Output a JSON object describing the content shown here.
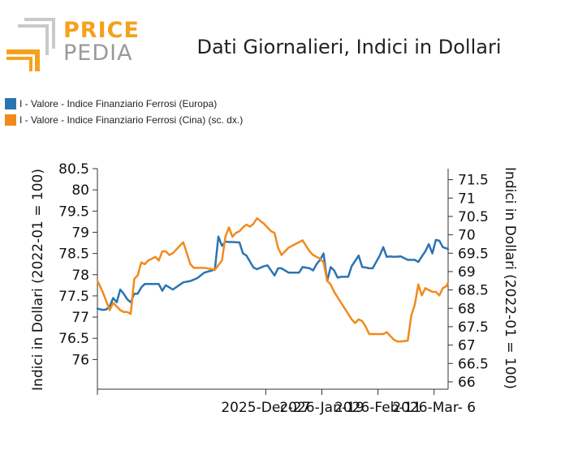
{
  "header": {
    "brand_top": "PRICE",
    "brand_bottom": "PEDIA",
    "title": "Dati Giornalieri, Indici in Dollari"
  },
  "colors": {
    "blue": "#2b74b2",
    "orange": "#f28a1c",
    "logo_orange": "#f5a11c",
    "logo_gray": "#b5b5b5"
  },
  "chart_data": {
    "type": "line",
    "title": "Dati Giornalieri, Indici in Dollari",
    "xlabel": "",
    "ylabel_left": "Indici in Dollari (2022-01 = 100)",
    "ylabel_right": "Indici in Dollari (2022-01 = 100)",
    "ylim_left": [
      75.3,
      80.5
    ],
    "ylim_right": [
      65.8,
      71.8
    ],
    "yticks_left": [
      "80.5",
      "80",
      "79.5",
      "79",
      "78.5",
      "78",
      "77.5",
      "77",
      "76.5",
      "76"
    ],
    "yticks_right": [
      "71.5",
      "71",
      "70.5",
      "70",
      "69.5",
      "69",
      "68.5",
      "68",
      "67.5",
      "67",
      "66.5",
      "66"
    ],
    "xticks": [
      "2025-Dec-27",
      "2026-Jan-19",
      "2026-Feb-11",
      "2026-Mar- 6"
    ],
    "xtick_positions": [
      48,
      64,
      80,
      96
    ],
    "xlim": [
      0,
      100
    ],
    "series": [
      {
        "name": "I - Valore - Indice Finanziario Ferrosi (Europa)",
        "axis": "left",
        "x": [
          0,
          1.5,
          2.5,
          3.5,
          4.5,
          5.5,
          6.5,
          7.5,
          8.5,
          9.5,
          10.5,
          11.5,
          12.5,
          13.5,
          15.5,
          17.5,
          18.5,
          19.5,
          21.5,
          24.5,
          26.5,
          28.5,
          30.5,
          33.5,
          34.5,
          35.5,
          36.5,
          37.5,
          38.5,
          40.5,
          41.5,
          42.5,
          44.5,
          45.5,
          47.5,
          48.5,
          50.5,
          51.5,
          52.5,
          54.5,
          56.5,
          57.5,
          58.5,
          60.5,
          61.5,
          62.5,
          63.5,
          64.5,
          65.5,
          66.5,
          67.5,
          68.5,
          69.5,
          70.5,
          71.5,
          72.5,
          74.5,
          75.5,
          76.5,
          77.5,
          78.5,
          80.5,
          81.5,
          82.5,
          83.5,
          84.5,
          86.5,
          88.5,
          90.5,
          91.5,
          92.5,
          93.5,
          94.5,
          95.5,
          96.5,
          97.5,
          98.5,
          99.5,
          100
        ],
        "values": [
          77.2,
          77.17,
          77.18,
          77.25,
          77.45,
          77.35,
          77.65,
          77.55,
          77.42,
          77.35,
          77.55,
          77.55,
          77.7,
          77.78,
          77.78,
          77.78,
          77.62,
          77.75,
          77.65,
          77.82,
          77.85,
          77.92,
          78.05,
          78.12,
          78.9,
          78.68,
          78.78,
          78.77,
          78.77,
          78.76,
          78.5,
          78.45,
          78.17,
          78.13,
          78.2,
          78.22,
          77.98,
          78.15,
          78.15,
          78.05,
          78.05,
          78.05,
          78.18,
          78.15,
          78.1,
          78.25,
          78.35,
          78.5,
          77.85,
          78.18,
          78.1,
          77.93,
          77.95,
          77.95,
          77.95,
          78.2,
          78.45,
          78.18,
          78.17,
          78.15,
          78.15,
          78.45,
          78.65,
          78.42,
          78.43,
          78.42,
          78.43,
          78.35,
          78.35,
          78.3,
          78.43,
          78.55,
          78.72,
          78.5,
          78.82,
          78.8,
          78.65,
          78.62,
          78.6
        ]
      },
      {
        "name": "I - Valore - Indice Finanziario Ferrosi (Cina) (sc. dx.)",
        "axis": "right",
        "x": [
          0,
          1.5,
          2.5,
          3.5,
          4.5,
          5.5,
          6.5,
          7.5,
          8.5,
          9.5,
          10.5,
          11.5,
          12.5,
          13.5,
          14.5,
          15.5,
          16.5,
          17.5,
          18.5,
          19.5,
          20.5,
          21.5,
          22.5,
          24.5,
          26.5,
          27.5,
          28.5,
          30.5,
          33.5,
          35.5,
          36.5,
          37.5,
          38.5,
          39.5,
          40.5,
          41.5,
          42.5,
          43.5,
          44.5,
          45.5,
          47.5,
          48.5,
          49.5,
          50.5,
          51.5,
          52.5,
          54.5,
          55.5,
          56.5,
          57.5,
          58.5,
          60.5,
          61.5,
          62.5,
          63.5,
          64.5,
          65.5,
          66.5,
          67.5,
          68.5,
          69.5,
          70.5,
          71.5,
          72.5,
          73.5,
          74.5,
          75.5,
          76.5,
          77.5,
          78.5,
          79.5,
          80.5,
          81.5,
          82.5,
          83.5,
          84.5,
          85.5,
          86.5,
          88.5,
          89.5,
          90.5,
          91.5,
          92.5,
          93.5,
          94.5,
          95.5,
          96.5,
          97.5,
          98.5,
          99.5,
          100
        ],
        "values": [
          68.75,
          68.45,
          68.2,
          67.95,
          68.15,
          68.05,
          67.95,
          67.9,
          67.9,
          67.85,
          68.8,
          68.9,
          69.25,
          69.2,
          69.3,
          69.35,
          69.4,
          69.3,
          69.55,
          69.55,
          69.45,
          69.5,
          69.6,
          69.8,
          69.2,
          69.1,
          69.1,
          69.1,
          69.05,
          69.3,
          69.95,
          70.2,
          69.95,
          70.05,
          70.1,
          70.2,
          70.28,
          70.22,
          70.3,
          70.45,
          70.3,
          70.2,
          70.1,
          70.05,
          69.65,
          69.45,
          69.65,
          69.7,
          69.75,
          69.8,
          69.85,
          69.55,
          69.45,
          69.4,
          69.35,
          69.25,
          68.75,
          68.65,
          68.45,
          68.3,
          68.15,
          68.0,
          67.85,
          67.7,
          67.6,
          67.7,
          67.65,
          67.5,
          67.3,
          67.3,
          67.3,
          67.3,
          67.3,
          67.35,
          67.25,
          67.15,
          67.1,
          67.1,
          67.12,
          67.8,
          68.1,
          68.65,
          68.35,
          68.55,
          68.5,
          68.45,
          68.45,
          68.35,
          68.55,
          68.6,
          68.7
        ]
      }
    ]
  }
}
